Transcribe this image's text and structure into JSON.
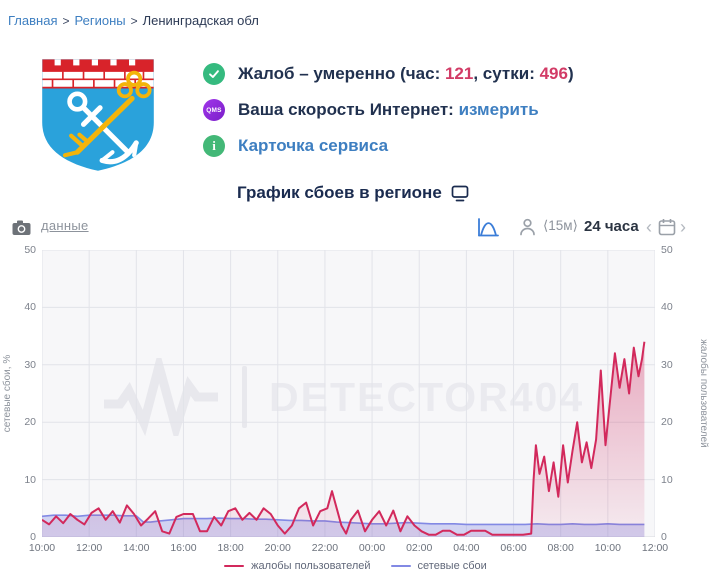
{
  "breadcrumb": {
    "separator": ">",
    "items": [
      {
        "label": "Главная"
      },
      {
        "label": "Регионы"
      },
      {
        "label": "Ленинградская обл"
      }
    ]
  },
  "status": {
    "complaints": {
      "t1": "Жалоб – умеренно (час: ",
      "hour": "121",
      "t2": ", сутки: ",
      "day": "496",
      "t3": ")"
    },
    "speed": {
      "badge": "QMS",
      "label": "Ваша скорость Интернет: ",
      "link": "измерить"
    },
    "service_card": {
      "badge": "i",
      "link": "Карточка сервиса"
    }
  },
  "chart_header": {
    "title": "График сбоев в регионе"
  },
  "toolbar": {
    "data_link": "данные",
    "interval": "⟨15м⟩",
    "range": "24 часа",
    "prev": "‹",
    "next": "›"
  },
  "watermark": "DETECTOR404",
  "colors": {
    "accent_crimson": "#d2295c",
    "series_blue": "#8289e4",
    "link_blue": "#3e7fc1",
    "badge_green": "#35ba7f",
    "badge_purple": "#8a2be2",
    "grid": "#e2e3e9",
    "plot_bg": "#f7f7f9"
  },
  "chart_data": {
    "type": "line",
    "title": "График сбоев в регионе",
    "x_unit": "hours since 10:00",
    "x_range": [
      0,
      26
    ],
    "x_tick_hours": [
      0,
      2,
      4,
      6,
      8,
      10,
      12,
      14,
      16,
      18,
      20,
      22,
      24,
      26
    ],
    "x_tick_labels": [
      "10:00",
      "12:00",
      "14:00",
      "16:00",
      "18:00",
      "20:00",
      "22:00",
      "00:00",
      "02:00",
      "04:00",
      "06:00",
      "08:00",
      "10:00",
      "12:00"
    ],
    "y_left": {
      "label": "сетевые сбои, %",
      "range": [
        0,
        50
      ],
      "ticks": [
        0,
        10,
        20,
        30,
        40,
        50
      ]
    },
    "y_right": {
      "label": "жалобы пользователей",
      "range": [
        0,
        50
      ],
      "ticks": [
        0,
        10,
        20,
        30,
        40,
        50
      ]
    },
    "grid": true,
    "legend_position": "bottom",
    "series": [
      {
        "name": "жалобы пользователей",
        "axis": "right",
        "color": "#d2295c",
        "fill_top": "rgba(205,35,90,0.50)",
        "fill_bottom": "rgba(205,35,90,0.06)",
        "points": [
          [
            0,
            3
          ],
          [
            0.3,
            2.2
          ],
          [
            0.6,
            3.6
          ],
          [
            0.9,
            2.4
          ],
          [
            1.2,
            4
          ],
          [
            1.5,
            3
          ],
          [
            1.8,
            2.2
          ],
          [
            2.1,
            4.2
          ],
          [
            2.4,
            5
          ],
          [
            2.7,
            3
          ],
          [
            3,
            4.5
          ],
          [
            3.3,
            2.5
          ],
          [
            3.6,
            5.5
          ],
          [
            3.9,
            4
          ],
          [
            4.2,
            2
          ],
          [
            4.5,
            3.2
          ],
          [
            4.8,
            4.5
          ],
          [
            5.1,
            1
          ],
          [
            5.4,
            0.6
          ],
          [
            5.7,
            3.5
          ],
          [
            6,
            4
          ],
          [
            6.4,
            4
          ],
          [
            6.7,
            1
          ],
          [
            7,
            1
          ],
          [
            7.3,
            3.5
          ],
          [
            7.6,
            2
          ],
          [
            7.9,
            4.5
          ],
          [
            8.2,
            5
          ],
          [
            8.5,
            3
          ],
          [
            8.8,
            4.2
          ],
          [
            9.1,
            3
          ],
          [
            9.4,
            5
          ],
          [
            9.7,
            4
          ],
          [
            10,
            2
          ],
          [
            10.3,
            0.6
          ],
          [
            10.6,
            2
          ],
          [
            10.9,
            5
          ],
          [
            11.2,
            6
          ],
          [
            11.5,
            2
          ],
          [
            11.8,
            4.5
          ],
          [
            12.1,
            5
          ],
          [
            12.3,
            8
          ],
          [
            12.5,
            5
          ],
          [
            12.7,
            2
          ],
          [
            12.9,
            0.6
          ],
          [
            13.1,
            3
          ],
          [
            13.4,
            4.6
          ],
          [
            13.7,
            1
          ],
          [
            14,
            3
          ],
          [
            14.3,
            4.5
          ],
          [
            14.6,
            2
          ],
          [
            14.9,
            4.6
          ],
          [
            15.2,
            1
          ],
          [
            15.5,
            3.6
          ],
          [
            15.8,
            2
          ],
          [
            16.1,
            1
          ],
          [
            16.4,
            0.4
          ],
          [
            16.7,
            0.4
          ],
          [
            17,
            1.1
          ],
          [
            17.3,
            1.1
          ],
          [
            17.6,
            0.4
          ],
          [
            17.9,
            0.4
          ],
          [
            18.2,
            1.1
          ],
          [
            18.5,
            1.1
          ],
          [
            18.8,
            1.1
          ],
          [
            19.1,
            0.4
          ],
          [
            19.5,
            0.4
          ],
          [
            20,
            0.4
          ],
          [
            20.4,
            0.4
          ],
          [
            20.6,
            0.5
          ],
          [
            20.75,
            0.6
          ],
          [
            20.85,
            10
          ],
          [
            20.95,
            16
          ],
          [
            21.1,
            11
          ],
          [
            21.3,
            14
          ],
          [
            21.5,
            8
          ],
          [
            21.7,
            13
          ],
          [
            21.9,
            7
          ],
          [
            22.1,
            16
          ],
          [
            22.3,
            9.5
          ],
          [
            22.5,
            15
          ],
          [
            22.7,
            20
          ],
          [
            22.9,
            13
          ],
          [
            23.1,
            16.5
          ],
          [
            23.3,
            12
          ],
          [
            23.5,
            17
          ],
          [
            23.7,
            29
          ],
          [
            23.9,
            16
          ],
          [
            24.1,
            24
          ],
          [
            24.3,
            32
          ],
          [
            24.5,
            26
          ],
          [
            24.7,
            31
          ],
          [
            24.9,
            25
          ],
          [
            25.1,
            33
          ],
          [
            25.3,
            28
          ],
          [
            25.45,
            31
          ],
          [
            25.55,
            34
          ]
        ]
      },
      {
        "name": "сетевые сбои",
        "axis": "left",
        "color": "#8289e4",
        "fill": "rgba(130,137,228,0.32)",
        "points": [
          [
            0,
            3.6
          ],
          [
            0.5,
            3.8
          ],
          [
            1,
            3.8
          ],
          [
            1.5,
            3.6
          ],
          [
            2,
            3.8
          ],
          [
            2.5,
            3.8
          ],
          [
            3,
            3.8
          ],
          [
            3.5,
            3.7
          ],
          [
            4,
            3.7
          ],
          [
            4.3,
            2.6
          ],
          [
            4.6,
            2.6
          ],
          [
            5,
            2.8
          ],
          [
            5.5,
            3
          ],
          [
            6,
            3.2
          ],
          [
            6.5,
            3.2
          ],
          [
            7,
            3.2
          ],
          [
            7.5,
            3.3
          ],
          [
            8,
            3.2
          ],
          [
            8.5,
            3.2
          ],
          [
            9,
            3.1
          ],
          [
            9.5,
            3.1
          ],
          [
            10,
            3
          ],
          [
            10.5,
            2.9
          ],
          [
            11,
            2.9
          ],
          [
            11.5,
            2.8
          ],
          [
            12,
            2.8
          ],
          [
            12.5,
            2.6
          ],
          [
            13,
            2.5
          ],
          [
            13.5,
            2.4
          ],
          [
            14,
            2.3
          ],
          [
            14.5,
            2.3
          ],
          [
            15,
            2.4
          ],
          [
            15.5,
            2.5
          ],
          [
            16,
            2.4
          ],
          [
            16.5,
            2.3
          ],
          [
            17,
            2.3
          ],
          [
            17.5,
            2.3
          ],
          [
            18,
            2.2
          ],
          [
            18.5,
            2.2
          ],
          [
            19,
            2.2
          ],
          [
            19.5,
            2.2
          ],
          [
            20,
            2.2
          ],
          [
            20.5,
            2.2
          ],
          [
            21,
            2.3
          ],
          [
            21.5,
            2.2
          ],
          [
            22,
            2.2
          ],
          [
            22.5,
            2.3
          ],
          [
            23,
            2.2
          ],
          [
            23.5,
            2.2
          ],
          [
            24,
            2.3
          ],
          [
            24.5,
            2.2
          ],
          [
            25,
            2.2
          ],
          [
            25.55,
            2.2
          ]
        ]
      }
    ]
  }
}
